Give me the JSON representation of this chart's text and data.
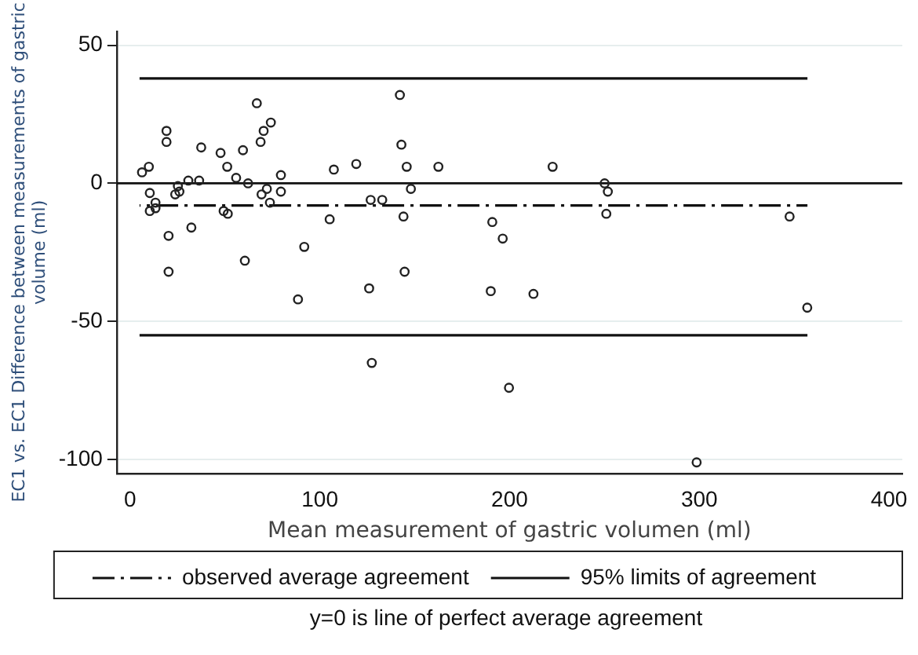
{
  "chart_data": {
    "type": "scatter",
    "xlabel": "Mean measurement of gastric volumen (ml)",
    "ylabel": "EC1 vs. EC1 Difference between measurements of gastric volume (ml)",
    "xlim": [
      -7,
      407
    ],
    "ylim": [
      -105,
      55
    ],
    "xticks": [
      0,
      100,
      200,
      300,
      400
    ],
    "yticks": [
      -100,
      -50,
      0,
      50
    ],
    "grid": "y",
    "legend": "bottom",
    "marker": "circle",
    "series": [
      {
        "color": "#222222",
        "x": [
          6.3,
          9.9,
          10.4,
          10.4,
          13.4,
          13.4,
          19.2,
          19.2,
          20.3,
          20.3,
          23.8,
          25.2,
          26,
          30.7,
          32.3,
          36.4,
          37.5,
          47.7,
          49.3,
          51.5,
          51.2,
          55.9,
          59.5,
          60.5,
          62.2,
          66.8,
          68.8,
          70.4,
          74.2,
          69.3,
          72.1,
          73.7,
          79.5,
          79.5,
          88.5,
          91.8,
          105.2,
          107.4,
          119.2,
          126,
          126.8,
          127.4,
          132.9,
          142.2,
          143,
          144.1,
          144.7,
          145.8,
          148,
          162.5,
          222.7,
          250.1,
          251.8,
          251,
          190.9,
          196.4,
          190.1,
          212.6,
          199.7,
          298.6,
          347.6,
          356.9
        ],
        "values": [
          4,
          6,
          -3.5,
          -10,
          -9,
          -7,
          19,
          15,
          -19,
          -32,
          -4,
          -1,
          -3,
          1,
          -16,
          1,
          13,
          11,
          -10,
          -11,
          6,
          2,
          12,
          -28,
          0,
          29,
          15,
          19,
          22,
          -4,
          -2,
          -7,
          3,
          -3,
          -42,
          -23,
          -13,
          5,
          7,
          -38,
          -6,
          -65,
          -6,
          32,
          14,
          -12,
          -32,
          6,
          -2,
          6,
          6,
          0,
          -3,
          -11,
          -14,
          -20,
          -39,
          -40,
          -74,
          -101,
          -12,
          -45
        ]
      },
      {
        "type": "line",
        "name": "observed average agreement",
        "color": "#111111",
        "line_style": "dashed",
        "marker": "none",
        "x": [
          5,
          357
        ],
        "values": [
          -8,
          -8
        ]
      },
      {
        "type": "line",
        "name": "95% limits of agreement",
        "color": "#111111",
        "line_style": "solid",
        "marker": "none",
        "x": [
          5,
          357
        ],
        "values": [
          38,
          38
        ]
      },
      {
        "type": "line",
        "color": "#111111",
        "line_style": "solid",
        "marker": "none",
        "x": [
          5,
          357
        ],
        "values": [
          -55,
          -55
        ]
      }
    ],
    "ref_lines": [
      {
        "axis": "y",
        "value": 0,
        "color": "#111111"
      }
    ],
    "annotations": [
      "y=0 is line of perfect average agreement"
    ]
  }
}
